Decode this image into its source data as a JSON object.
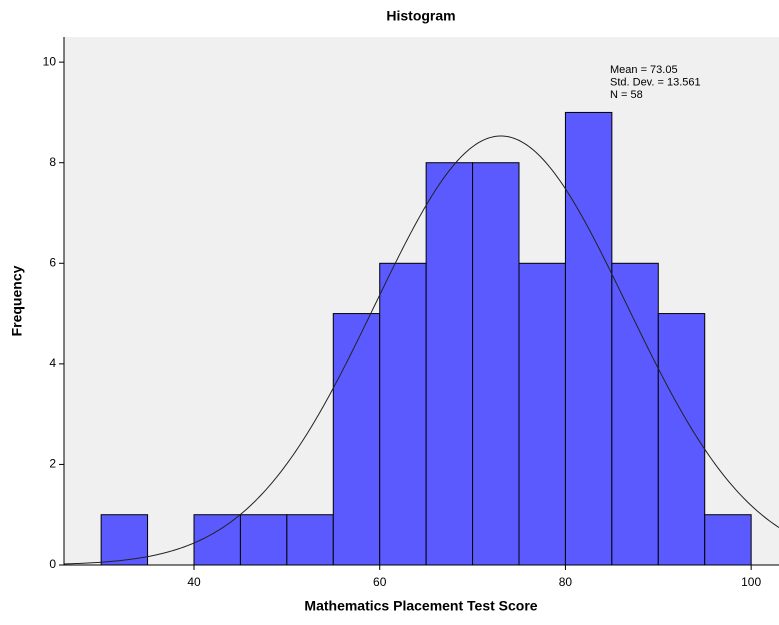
{
  "chart_data": {
    "type": "histogram",
    "title": "Histogram",
    "xlabel": "Mathematics Placement Test Score",
    "ylabel": "Frequency",
    "bins": [
      30,
      35,
      40,
      45,
      50,
      55,
      60,
      65,
      70,
      75,
      80,
      85,
      90,
      95,
      100
    ],
    "counts": [
      1,
      0,
      1,
      1,
      1,
      5,
      6,
      8,
      8,
      6,
      9,
      6,
      5,
      1
    ],
    "color": "#5a5aff",
    "xlim": [
      26,
      103
    ],
    "xticks": [
      40,
      60,
      80,
      100
    ],
    "ylim": [
      0,
      10.5
    ],
    "yticks": [
      0,
      2,
      4,
      6,
      8,
      10
    ],
    "stats": [
      {
        "value": 73.05,
        "label": "Mean = 73.05"
      },
      {
        "value": 13.561,
        "label": "Std. Dev. = 13.561"
      },
      {
        "value": 58,
        "label": "N = 58"
      }
    ],
    "normal_curve": true
  }
}
